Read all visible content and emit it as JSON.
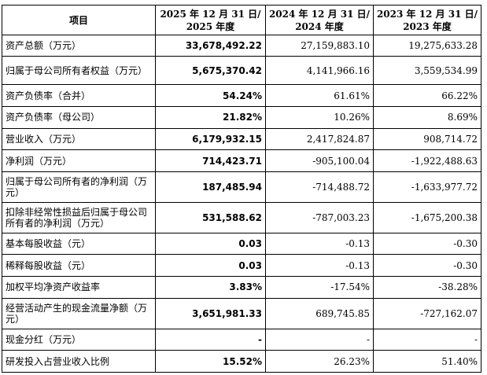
{
  "header": {
    "item": "项目",
    "col2025_line1": "2025 年 12 月 31 日/",
    "col2025_line2": "2025 年度",
    "col2024_line1": "2024 年 12 月 31 日/",
    "col2024_line2": "2024 年度",
    "col2023_line1": "2023 年 12 月 31 日/",
    "col2023_line2": "2023 年度"
  },
  "rows": [
    {
      "label": "资产总额（万元）",
      "v2025": "33,678,492.22",
      "v2024": "27,159,883.10",
      "v2023": "19,275,633.28"
    },
    {
      "label": "归属于母公司所有者权益（万元）",
      "v2025": "5,675,370.42",
      "v2024": "4,141,966.16",
      "v2023": "3,559,534.99"
    },
    {
      "label": "资产负债率（合并）",
      "v2025": "54.24%",
      "v2024": "61.61%",
      "v2023": "66.22%"
    },
    {
      "label": "资产负债率（母公司）",
      "v2025": "21.82%",
      "v2024": "10.26%",
      "v2023": "8.69%"
    },
    {
      "label": "营业收入（万元）",
      "v2025": "6,179,932.15",
      "v2024": "2,417,824.87",
      "v2023": "908,714.72"
    },
    {
      "label": "净利润（万元）",
      "v2025": "714,423.71",
      "v2024": "-905,100.04",
      "v2023": "-1,922,488.63"
    },
    {
      "label": "归属于母公司所有者的净利润（万元）",
      "v2025": "187,485.94",
      "v2024": "-714,488.72",
      "v2023": "-1,633,977.72"
    },
    {
      "label": "扣除非经常性损益后归属于母公司所有者的净利润（万元）",
      "v2025": "531,588.62",
      "v2024": "-787,003.23",
      "v2023": "-1,675,200.38"
    },
    {
      "label": "基本每股收益（元）",
      "v2025": "0.03",
      "v2024": "-0.13",
      "v2023": "-0.30"
    },
    {
      "label": "稀释每股收益（元）",
      "v2025": "0.03",
      "v2024": "-0.13",
      "v2023": "-0.30"
    },
    {
      "label": "加权平均净资产收益率",
      "v2025": "3.83%",
      "v2024": "-17.54%",
      "v2023": "-38.28%"
    },
    {
      "label": "经营活动产生的现金流量净额（万元）",
      "v2025": "3,651,981.33",
      "v2024": "689,745.85",
      "v2023": "-727,162.07"
    },
    {
      "label": "现金分红（万元）",
      "v2025": "-",
      "v2024": "-",
      "v2023": "-"
    },
    {
      "label": "研发投入占营业收入比例",
      "v2025": "15.52%",
      "v2024": "26.23%",
      "v2023": "51.40%"
    }
  ]
}
